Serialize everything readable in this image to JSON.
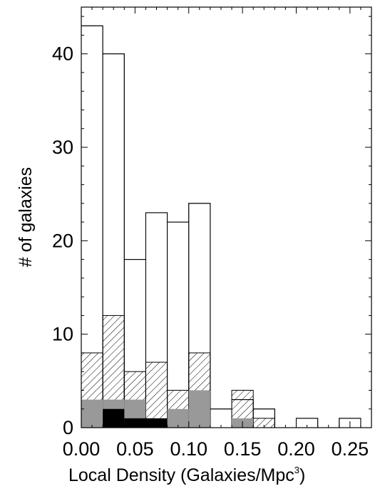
{
  "chart_data": {
    "type": "bar",
    "xlabel": "Local Density (Galaxies/Mpc",
    "xlabel_sup": "3",
    "xlabel_close": ")",
    "ylabel": "# of galaxies",
    "xlim": [
      0.0,
      0.27
    ],
    "ylim": [
      0,
      45
    ],
    "bin_width": 0.02,
    "bin_starts": [
      0.0,
      0.02,
      0.04,
      0.06,
      0.08,
      0.1,
      0.12,
      0.14,
      0.16,
      0.18,
      0.2,
      0.22,
      0.24
    ],
    "x_ticks": [
      "0.00",
      "0.05",
      "0.10",
      "0.15",
      "0.20",
      "0.25"
    ],
    "x_tick_values": [
      0.0,
      0.05,
      0.1,
      0.15,
      0.2,
      0.25
    ],
    "y_ticks": [
      "0",
      "10",
      "20",
      "30",
      "40"
    ],
    "y_tick_values": [
      0,
      10,
      20,
      30,
      40
    ],
    "series": [
      {
        "style": "open",
        "color": "#000000",
        "values": [
          43,
          40,
          18,
          23,
          22,
          24,
          2,
          3,
          2,
          0,
          1,
          0,
          1
        ]
      },
      {
        "style": "hatched",
        "color": "#000000",
        "values": [
          8,
          12,
          6,
          7,
          4,
          8,
          0,
          4,
          1,
          0,
          0,
          0,
          0
        ]
      },
      {
        "style": "filled",
        "color": "#999999",
        "values": [
          3,
          3,
          3,
          0,
          2,
          4,
          0,
          1,
          0,
          0,
          0,
          0,
          0
        ]
      },
      {
        "style": "filled",
        "color": "#000000",
        "values": [
          0,
          2,
          1,
          1,
          0,
          0,
          0,
          0,
          0,
          0,
          0,
          0,
          0
        ]
      }
    ]
  }
}
